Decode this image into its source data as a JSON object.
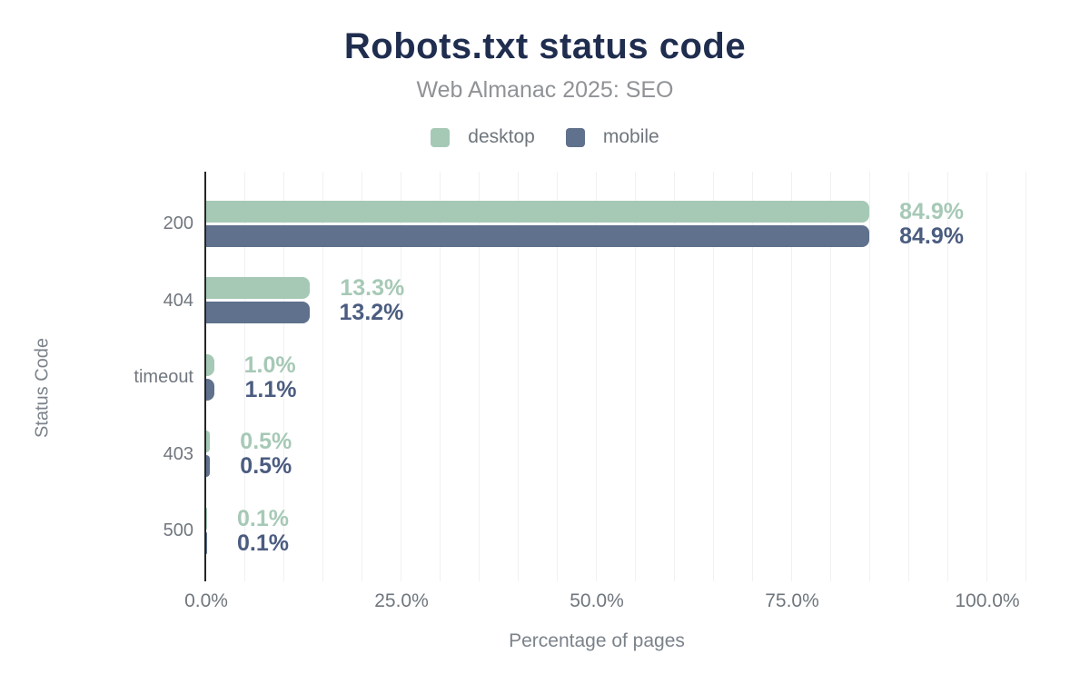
{
  "header": {
    "title": "Robots.txt status code",
    "subtitle": "Web Almanac 2025: SEO"
  },
  "colors": {
    "title": "#1f2d4f",
    "subtitle": "#8f9296",
    "axis_text": "#6f767d",
    "axis_line": "#262626",
    "gridline": "#f0f1f2",
    "desktop": "#a6c9b6",
    "mobile": "#5f718c",
    "desktop_value_label": "#a6c9b6",
    "mobile_value_label": "#4b5c80"
  },
  "chart_data": {
    "type": "bar",
    "orientation": "horizontal",
    "title": "Robots.txt status code",
    "subtitle": "Web Almanac 2025: SEO",
    "xlabel": "Percentage of pages",
    "ylabel": "Status Code",
    "categories": [
      "200",
      "404",
      "timeout",
      "403",
      "500"
    ],
    "series": [
      {
        "name": "desktop",
        "color": "#a6c9b6",
        "label_color": "#a6c9b6",
        "values": [
          84.9,
          13.3,
          1.0,
          0.5,
          0.1
        ],
        "display_labels": [
          "84.9%",
          "13.3%",
          "1.0%",
          "0.5%",
          "0.1%"
        ]
      },
      {
        "name": "mobile",
        "color": "#5f718c",
        "label_color": "#4b5c80",
        "values": [
          84.9,
          13.2,
          1.1,
          0.5,
          0.1
        ],
        "display_labels": [
          "84.9%",
          "13.2%",
          "1.1%",
          "0.5%",
          "0.1%"
        ]
      }
    ],
    "x_ticks": [
      {
        "value": 0,
        "label": "0.0%"
      },
      {
        "value": 25,
        "label": "25.0%"
      },
      {
        "value": 50,
        "label": "50.0%"
      },
      {
        "value": 75,
        "label": "75.0%"
      },
      {
        "value": 100,
        "label": "100.0%"
      }
    ],
    "xlim": [
      0,
      105
    ],
    "grid": "vertical minor gridlines every 5%",
    "legend_position": "top-center",
    "value_labels": "right of bar end, colored per series"
  }
}
